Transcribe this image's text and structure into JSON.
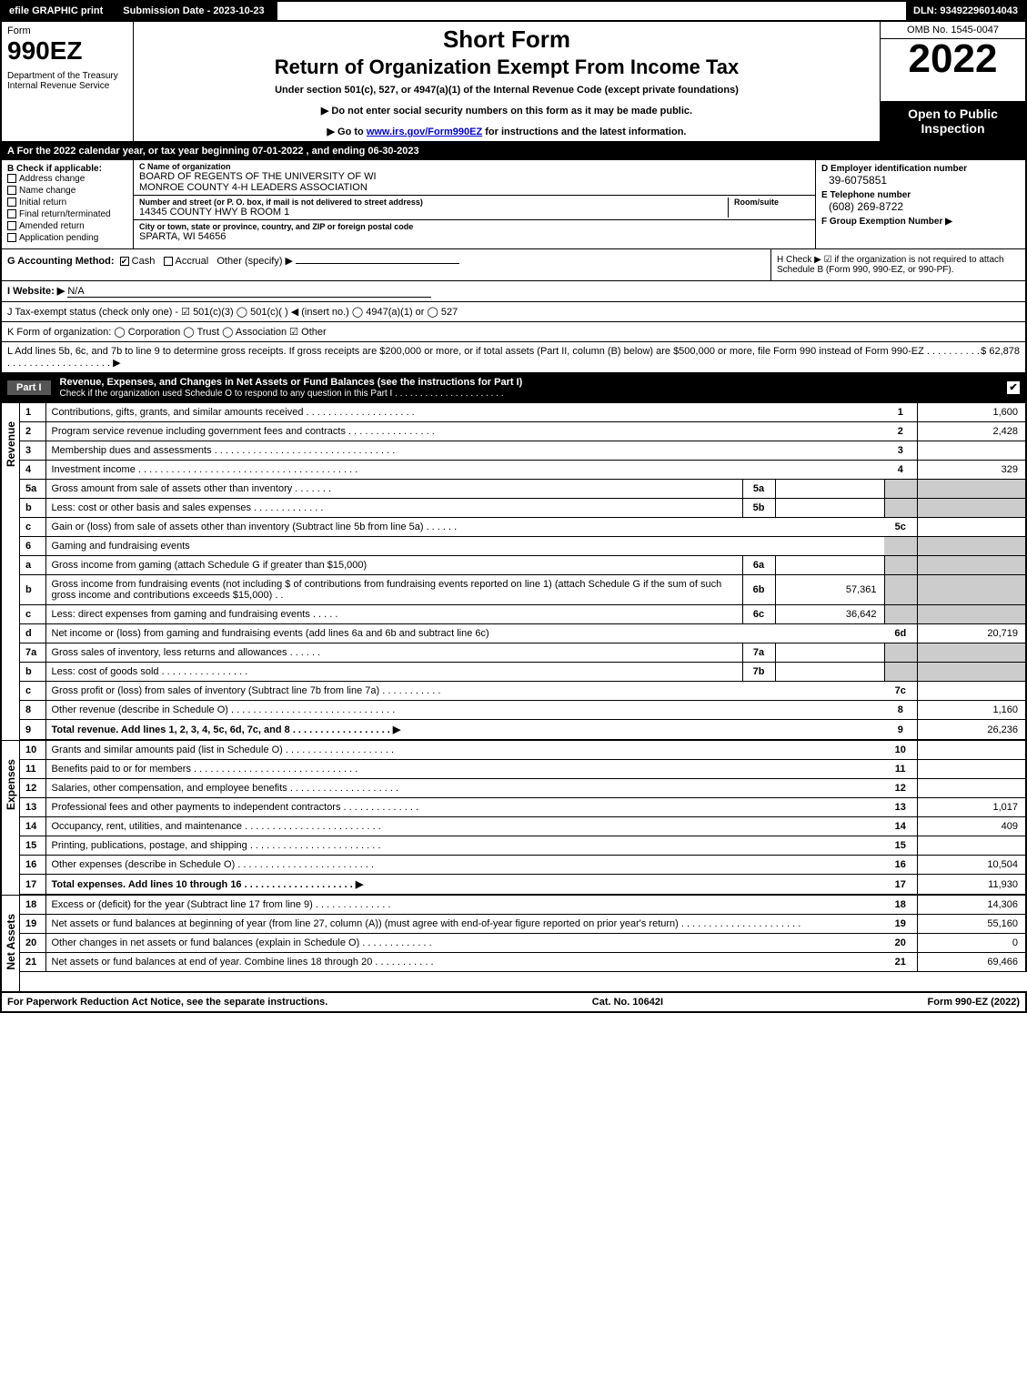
{
  "topbar": {
    "efile": "efile GRAPHIC print",
    "submission": "Submission Date - 2023-10-23",
    "dln": "DLN: 93492296014043"
  },
  "header": {
    "form_label": "Form",
    "form_number": "990EZ",
    "dept": "Department of the Treasury\nInternal Revenue Service",
    "short": "Short Form",
    "title": "Return of Organization Exempt From Income Tax",
    "subtitle": "Under section 501(c), 527, or 4947(a)(1) of the Internal Revenue Code (except private foundations)",
    "line1": "Do not enter social security numbers on this form as it may be made public.",
    "line2_pre": "Go to ",
    "line2_link": "www.irs.gov/Form990EZ",
    "line2_post": " for instructions and the latest information.",
    "omb": "OMB No. 1545-0047",
    "year": "2022",
    "open": "Open to Public Inspection"
  },
  "secA": "A  For the 2022 calendar year, or tax year beginning 07-01-2022 , and ending 06-30-2023",
  "boxB": {
    "label": "B  Check if applicable:",
    "items": [
      "Address change",
      "Name change",
      "Initial return",
      "Final return/terminated",
      "Amended return",
      "Application pending"
    ]
  },
  "boxC": {
    "c_label": "C Name of organization",
    "c_name1": "BOARD OF REGENTS OF THE UNIVERSITY OF WI",
    "c_name2": "MONROE COUNTY 4-H LEADERS ASSOCIATION",
    "addr_label": "Number and street (or P. O. box, if mail is not delivered to street address)",
    "room_label": "Room/suite",
    "addr": "14345 COUNTY HWY B ROOM 1",
    "city_label": "City or town, state or province, country, and ZIP or foreign postal code",
    "city": "SPARTA, WI  54656"
  },
  "boxD": {
    "d_label": "D Employer identification number",
    "ein": "39-6075851",
    "e_label": "E Telephone number",
    "phone": "(608) 269-8722",
    "f_label": "F Group Exemption Number  ▶"
  },
  "rowG": {
    "g_label": "G Accounting Method:",
    "g_cash": "Cash",
    "g_accrual": "Accrual",
    "g_other": "Other (specify) ▶",
    "h_text": "H  Check ▶ ☑ if the organization is not required to attach Schedule B (Form 990, 990-EZ, or 990-PF)."
  },
  "website": {
    "label": "I Website: ▶",
    "value": "N/A"
  },
  "jrow": "J Tax-exempt status (check only one) - ☑ 501(c)(3)  ◯ 501(c)( )  ◀ (insert no.)  ◯ 4947(a)(1) or  ◯ 527",
  "krow": "K Form of organization:  ◯ Corporation  ◯ Trust  ◯ Association  ☑ Other",
  "lrow": {
    "text": "L Add lines 5b, 6c, and 7b to line 9 to determine gross receipts. If gross receipts are $200,000 or more, or if total assets (Part II, column (B) below) are $500,000 or more, file Form 990 instead of Form 990-EZ . . . . . . . . . . . . . . . . . . . . . . . . . . . . . ▶",
    "value": "$ 62,878"
  },
  "part1": {
    "label": "Part I",
    "title": "Revenue, Expenses, and Changes in Net Assets or Fund Balances (see the instructions for Part I)",
    "sub": "Check if the organization used Schedule O to respond to any question in this Part I . . . . . . . . . . . . . . . . . . . . . ."
  },
  "sections": {
    "revenue": "Revenue",
    "expenses": "Expenses",
    "netassets": "Net Assets"
  },
  "lines": [
    {
      "n": "1",
      "d": "Contributions, gifts, grants, and similar amounts received . . . . . . . . . . . . . . . . . . . .",
      "rn": "1",
      "rv": "1,600"
    },
    {
      "n": "2",
      "d": "Program service revenue including government fees and contracts . . . . . . . . . . . . . . . .",
      "rn": "2",
      "rv": "2,428"
    },
    {
      "n": "3",
      "d": "Membership dues and assessments . . . . . . . . . . . . . . . . . . . . . . . . . . . . . . . . .",
      "rn": "3",
      "rv": ""
    },
    {
      "n": "4",
      "d": "Investment income . . . . . . . . . . . . . . . . . . . . . . . . . . . . . . . . . . . . . . . .",
      "rn": "4",
      "rv": "329"
    },
    {
      "n": "5a",
      "d": "Gross amount from sale of assets other than inventory . . . . . . .",
      "mn": "5a",
      "mv": "",
      "shadeR": true
    },
    {
      "n": "b",
      "d": "Less: cost or other basis and sales expenses . . . . . . . . . . . . .",
      "mn": "5b",
      "mv": "",
      "shadeR": true
    },
    {
      "n": "c",
      "d": "Gain or (loss) from sale of assets other than inventory (Subtract line 5b from line 5a) . . . . . .",
      "rn": "5c",
      "rv": ""
    },
    {
      "n": "6",
      "d": "Gaming and fundraising events",
      "shadeR": true,
      "shadeRN": true
    },
    {
      "n": "a",
      "d": "Gross income from gaming (attach Schedule G if greater than $15,000)",
      "mn": "6a",
      "mv": "",
      "shadeR": true
    },
    {
      "n": "b",
      "d": "Gross income from fundraising events (not including $                 of contributions from fundraising events reported on line 1) (attach Schedule G if the sum of such gross income and contributions exceeds $15,000)   .  .",
      "mn": "6b",
      "mv": "57,361",
      "shadeR": true
    },
    {
      "n": "c",
      "d": "Less: direct expenses from gaming and fundraising events   . . . . .",
      "mn": "6c",
      "mv": "36,642",
      "shadeR": true
    },
    {
      "n": "d",
      "d": "Net income or (loss) from gaming and fundraising events (add lines 6a and 6b and subtract line 6c)",
      "rn": "6d",
      "rv": "20,719"
    },
    {
      "n": "7a",
      "d": "Gross sales of inventory, less returns and allowances . . . . . .",
      "mn": "7a",
      "mv": "",
      "shadeR": true
    },
    {
      "n": "b",
      "d": "Less: cost of goods sold     . . . . . . . . . . . . . . . .",
      "mn": "7b",
      "mv": "",
      "shadeR": true
    },
    {
      "n": "c",
      "d": "Gross profit or (loss) from sales of inventory (Subtract line 7b from line 7a) . . . . . . . . . . .",
      "rn": "7c",
      "rv": ""
    },
    {
      "n": "8",
      "d": "Other revenue (describe in Schedule O) . . . . . . . . . . . . . . . . . . . . . . . . . . . . . .",
      "rn": "8",
      "rv": "1,160"
    },
    {
      "n": "9",
      "d": "Total revenue. Add lines 1, 2, 3, 4, 5c, 6d, 7c, and 8  . . . . . . . . . . . . . . . . . .  ▶",
      "rn": "9",
      "rv": "26,236",
      "bold": true
    }
  ],
  "expense_lines": [
    {
      "n": "10",
      "d": "Grants and similar amounts paid (list in Schedule O) . . . . . . . . . . . . . . . . . . . .",
      "rn": "10",
      "rv": ""
    },
    {
      "n": "11",
      "d": "Benefits paid to or for members   . . . . . . . . . . . . . . . . . . . . . . . . . . . . . .",
      "rn": "11",
      "rv": ""
    },
    {
      "n": "12",
      "d": "Salaries, other compensation, and employee benefits . . . . . . . . . . . . . . . . . . . .",
      "rn": "12",
      "rv": ""
    },
    {
      "n": "13",
      "d": "Professional fees and other payments to independent contractors . . . . . . . . . . . . . .",
      "rn": "13",
      "rv": "1,017"
    },
    {
      "n": "14",
      "d": "Occupancy, rent, utilities, and maintenance . . . . . . . . . . . . . . . . . . . . . . . . .",
      "rn": "14",
      "rv": "409"
    },
    {
      "n": "15",
      "d": "Printing, publications, postage, and shipping . . . . . . . . . . . . . . . . . . . . . . . .",
      "rn": "15",
      "rv": ""
    },
    {
      "n": "16",
      "d": "Other expenses (describe in Schedule O)   . . . . . . . . . . . . . . . . . . . . . . . . .",
      "rn": "16",
      "rv": "10,504"
    },
    {
      "n": "17",
      "d": "Total expenses. Add lines 10 through 16    . . . . . . . . . . . . . . . . . . . .  ▶",
      "rn": "17",
      "rv": "11,930",
      "bold": true
    }
  ],
  "net_lines": [
    {
      "n": "18",
      "d": "Excess or (deficit) for the year (Subtract line 17 from line 9)       . . . . . . . . . . . . . .",
      "rn": "18",
      "rv": "14,306"
    },
    {
      "n": "19",
      "d": "Net assets or fund balances at beginning of year (from line 27, column (A)) (must agree with end-of-year figure reported on prior year's return) . . . . . . . . . . . . . . . . . . . . . .",
      "rn": "19",
      "rv": "55,160"
    },
    {
      "n": "20",
      "d": "Other changes in net assets or fund balances (explain in Schedule O) . . . . . . . . . . . . .",
      "rn": "20",
      "rv": "0"
    },
    {
      "n": "21",
      "d": "Net assets or fund balances at end of year. Combine lines 18 through 20 . . . . . . . . . . .",
      "rn": "21",
      "rv": "69,466"
    }
  ],
  "footer": {
    "left": "For Paperwork Reduction Act Notice, see the separate instructions.",
    "mid": "Cat. No. 10642I",
    "right": "Form 990-EZ (2022)"
  },
  "colors": {
    "black": "#000000",
    "white": "#ffffff",
    "shade": "#cccccc",
    "link": "#0000cc"
  }
}
